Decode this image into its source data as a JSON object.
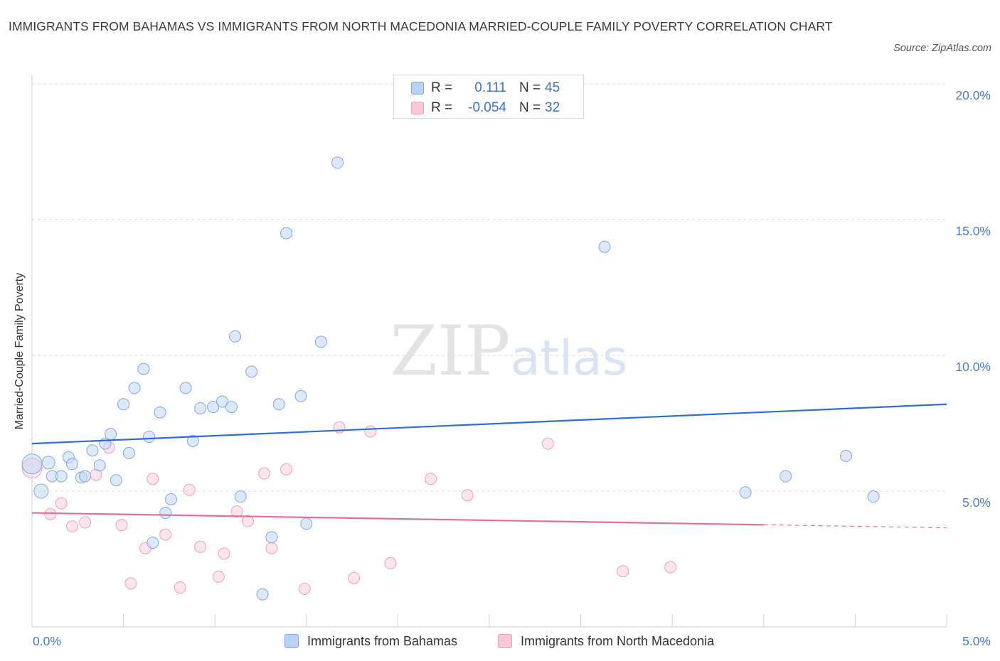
{
  "title": "IMMIGRANTS FROM BAHAMAS VS IMMIGRANTS FROM NORTH MACEDONIA MARRIED-COUPLE FAMILY POVERTY CORRELATION CHART",
  "source": "Source: ZipAtlas.com",
  "watermark": {
    "zip": "ZIP",
    "atlas": "atlas"
  },
  "legend_top": {
    "rows": [
      {
        "r_label": "R =",
        "r_value": "0.111",
        "n_label": "N =",
        "n_value": "45"
      },
      {
        "r_label": "R =",
        "r_value": "-0.054",
        "n_label": "N =",
        "n_value": "32"
      }
    ]
  },
  "chart_data": {
    "type": "scatter",
    "title": "IMMIGRANTS FROM BAHAMAS VS IMMIGRANTS FROM NORTH MACEDONIA MARRIED-COUPLE FAMILY POVERTY CORRELATION CHART",
    "xlabel": "",
    "ylabel": "Married-Couple Family Poverty",
    "xlim": [
      0,
      5
    ],
    "ylim": [
      0,
      20
    ],
    "x_tick_labels": [
      "0.0%",
      "5.0%"
    ],
    "y_ticks": [
      {
        "value": 5,
        "label": "5.0%"
      },
      {
        "value": 10,
        "label": "10.0%"
      },
      {
        "value": 15,
        "label": "15.0%"
      },
      {
        "value": 20,
        "label": "20.0%"
      }
    ],
    "grid": "horizontal dashed",
    "colors": {
      "bahamas": "#7fa8e0",
      "bahamas_fill": "#c6dbf5",
      "bahamas_line": "#2c6fcc",
      "macedonia": "#eca0b8",
      "macedonia_fill": "#fad3df",
      "macedonia_line": "#e0709a",
      "tick_label": "#4a7cc4"
    },
    "series": [
      {
        "name": "Immigrants from Bahamas",
        "trend": {
          "x0": 0,
          "y0": 6.75,
          "x1": 5,
          "y1": 8.2
        },
        "points": [
          [
            0.0,
            6.0,
            14
          ],
          [
            0.05,
            5.0,
            10
          ],
          [
            0.09,
            6.05,
            9
          ],
          [
            0.11,
            5.55,
            8
          ],
          [
            0.16,
            5.55,
            8
          ],
          [
            0.2,
            6.25,
            8
          ],
          [
            0.22,
            6.0,
            8
          ],
          [
            0.27,
            5.5,
            8
          ],
          [
            0.29,
            5.55,
            8
          ],
          [
            0.33,
            6.5,
            8
          ],
          [
            0.37,
            5.95,
            8
          ],
          [
            0.4,
            6.75,
            8
          ],
          [
            0.43,
            7.1,
            8
          ],
          [
            0.46,
            5.4,
            8
          ],
          [
            0.5,
            8.2,
            8
          ],
          [
            0.53,
            6.4,
            8
          ],
          [
            0.56,
            8.8,
            8
          ],
          [
            0.61,
            9.5,
            8
          ],
          [
            0.64,
            7.0,
            8
          ],
          [
            0.66,
            3.1,
            8
          ],
          [
            0.7,
            7.9,
            8
          ],
          [
            0.73,
            4.2,
            8
          ],
          [
            0.76,
            4.7,
            8
          ],
          [
            0.84,
            8.8,
            8
          ],
          [
            0.88,
            6.85,
            8
          ],
          [
            0.92,
            8.05,
            8
          ],
          [
            0.99,
            8.1,
            8
          ],
          [
            1.04,
            8.3,
            8
          ],
          [
            1.09,
            8.1,
            8
          ],
          [
            1.11,
            10.7,
            8
          ],
          [
            1.14,
            4.8,
            8
          ],
          [
            1.2,
            9.4,
            8
          ],
          [
            1.26,
            1.2,
            8
          ],
          [
            1.31,
            3.3,
            8
          ],
          [
            1.35,
            8.2,
            8
          ],
          [
            1.39,
            14.5,
            8
          ],
          [
            1.47,
            8.5,
            8
          ],
          [
            1.5,
            3.8,
            8
          ],
          [
            1.58,
            10.5,
            8
          ],
          [
            1.67,
            17.1,
            8
          ],
          [
            3.13,
            14.0,
            8
          ],
          [
            3.9,
            4.95,
            8
          ],
          [
            4.12,
            5.55,
            8
          ],
          [
            4.45,
            6.3,
            8
          ],
          [
            4.6,
            4.8,
            8
          ]
        ]
      },
      {
        "name": "Immigrants from North Macedonia",
        "trend": {
          "x0": 0,
          "y0": 4.2,
          "x1": 5,
          "y1": 3.65,
          "solid_until": 4.0
        },
        "points": [
          [
            0.0,
            5.85,
            14
          ],
          [
            0.1,
            4.15,
            8
          ],
          [
            0.16,
            4.55,
            8
          ],
          [
            0.22,
            3.7,
            8
          ],
          [
            0.29,
            3.85,
            8
          ],
          [
            0.35,
            5.6,
            8
          ],
          [
            0.42,
            6.6,
            8
          ],
          [
            0.49,
            3.75,
            8
          ],
          [
            0.54,
            1.6,
            8
          ],
          [
            0.62,
            2.9,
            8
          ],
          [
            0.66,
            5.45,
            8
          ],
          [
            0.73,
            3.4,
            8
          ],
          [
            0.81,
            1.45,
            8
          ],
          [
            0.86,
            5.05,
            8
          ],
          [
            0.92,
            2.95,
            8
          ],
          [
            1.02,
            1.85,
            8
          ],
          [
            1.05,
            2.7,
            8
          ],
          [
            1.12,
            4.25,
            8
          ],
          [
            1.18,
            3.9,
            8
          ],
          [
            1.27,
            5.65,
            8
          ],
          [
            1.31,
            2.9,
            8
          ],
          [
            1.39,
            5.8,
            8
          ],
          [
            1.49,
            1.4,
            8
          ],
          [
            1.68,
            7.35,
            8
          ],
          [
            1.76,
            1.8,
            8
          ],
          [
            1.85,
            7.2,
            8
          ],
          [
            1.96,
            2.35,
            8
          ],
          [
            2.18,
            5.45,
            8
          ],
          [
            2.38,
            4.85,
            8
          ],
          [
            2.82,
            6.75,
            8
          ],
          [
            3.23,
            2.05,
            8
          ],
          [
            3.49,
            2.2,
            8
          ]
        ]
      }
    ]
  },
  "legend_bottom": [
    {
      "label": "Immigrants from Bahamas"
    },
    {
      "label": "Immigrants from North Macedonia"
    }
  ]
}
